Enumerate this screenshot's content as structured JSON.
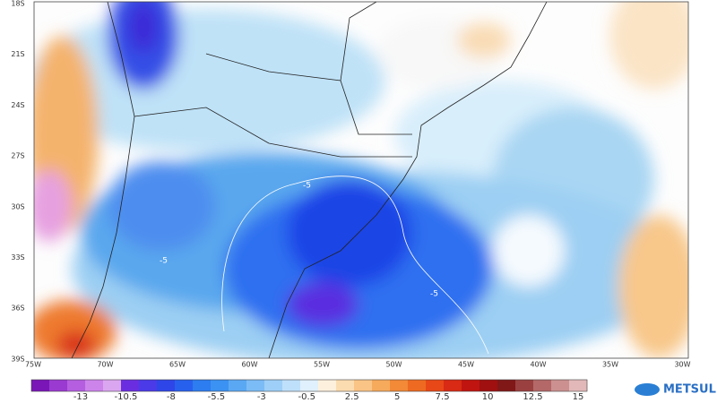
{
  "map": {
    "lat_labels": [
      "18S",
      "21S",
      "24S",
      "27S",
      "30S",
      "33S",
      "36S",
      "39S"
    ],
    "lon_labels": [
      "75W",
      "70W",
      "65W",
      "60W",
      "55W",
      "50W",
      "45W",
      "40W",
      "35W",
      "30W"
    ],
    "contour_labels": [
      "-5",
      "-5",
      "-5"
    ],
    "colorbar_labels": [
      -13,
      -10.5,
      -8,
      -5.5,
      -3,
      -0.5,
      2.5,
      5,
      7.5,
      10,
      12.5,
      15
    ],
    "logo": "METSUL"
  }
}
